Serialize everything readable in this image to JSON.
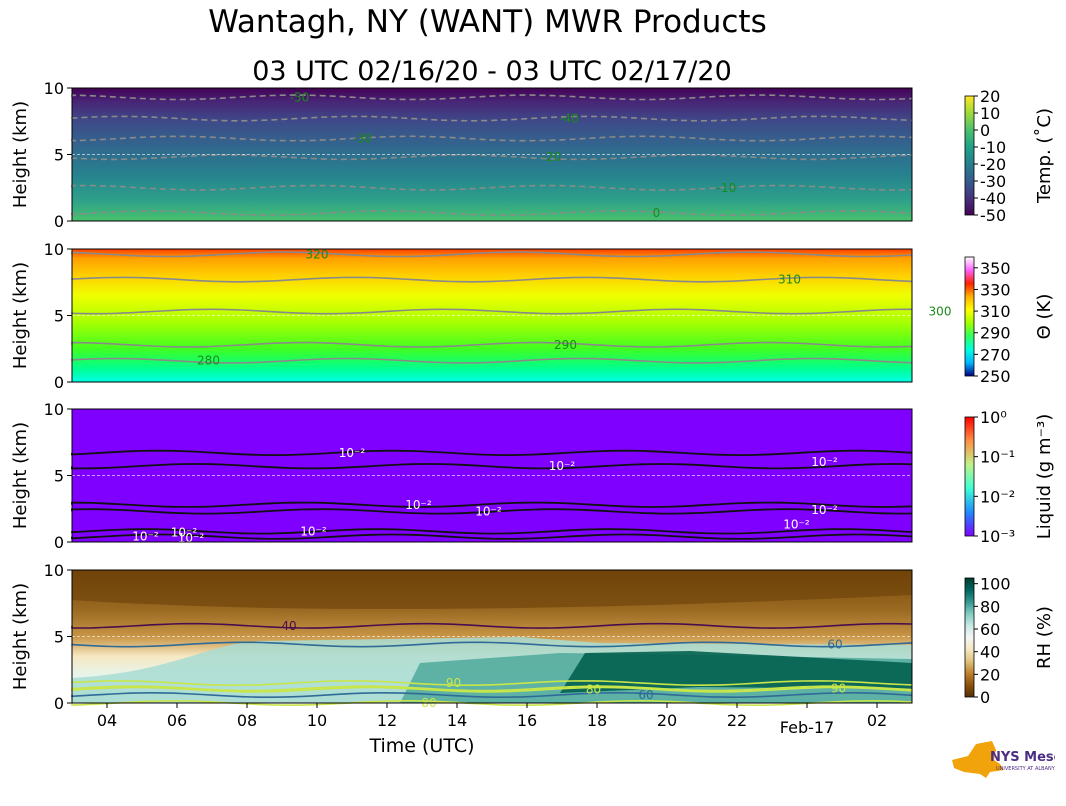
{
  "title": "Wantagh, NY (WANT) MWR Products",
  "subtitle": "03 UTC 02/16/20 - 03 UTC 02/17/20",
  "logo": {
    "name": "NYS Mesonet",
    "sub": "UNIVERSITY AT ALBANY",
    "colors": [
      "#f0a30a",
      "#4b2e83"
    ]
  },
  "chart_data": [
    {
      "type": "heatmap",
      "name": "temperature",
      "ylabel": "Height (km)",
      "ylim": [
        0,
        10
      ],
      "yticks": [
        "0",
        "5",
        "10"
      ],
      "colorbar_label": "Temp. (˚C)",
      "colorbar_ticks": [
        "-50",
        "-40",
        "-30",
        "-20",
        "-10",
        "0",
        "10",
        "20"
      ],
      "colorbar_range": [
        -50,
        20
      ],
      "colormap": [
        "#440154",
        "#46327e",
        "#365c8d",
        "#277f8e",
        "#1fa187",
        "#4ac16d",
        "#a0da39",
        "#fde725"
      ],
      "contour_levels": [
        "-50",
        "-40",
        "-30",
        "-20",
        "-10",
        "0"
      ],
      "contour_labels": [
        {
          "text": "-50",
          "t": 9.5,
          "h": 9.3
        },
        {
          "text": "-40",
          "t": 17.2,
          "h": 7.7
        },
        {
          "text": "-30",
          "t": 11.3,
          "h": 6.2
        },
        {
          "text": "-20",
          "t": 16.7,
          "h": 4.8
        },
        {
          "text": "-10",
          "t": 21.7,
          "h": 2.5
        },
        {
          "text": "0",
          "t": 19.7,
          "h": 0.6
        }
      ]
    },
    {
      "type": "heatmap",
      "name": "potential-temperature",
      "ylabel": "Height (km)",
      "ylim": [
        0,
        10
      ],
      "yticks": [
        "0",
        "5",
        "10"
      ],
      "colorbar_label": "Θ (K)",
      "colorbar_ticks": [
        "250",
        "270",
        "290",
        "310",
        "330",
        "350"
      ],
      "colorbar_range": [
        250,
        360
      ],
      "colormap": [
        "#000080",
        "#00b4ff",
        "#00ffe0",
        "#30ff60",
        "#a0ff00",
        "#ffff00",
        "#ffb000",
        "#ff2000",
        "#ff60ff",
        "#ffffff"
      ],
      "contour_levels": [
        "280",
        "290",
        "300",
        "310",
        "320"
      ],
      "contour_labels": [
        {
          "text": "320",
          "t": 10.0,
          "h": 9.6
        },
        {
          "text": "310",
          "t": 23.5,
          "h": 7.7
        },
        {
          "text": "300",
          "t": 27.8,
          "h": 5.3
        },
        {
          "text": "290",
          "t": 17.1,
          "h": 2.8
        },
        {
          "text": "280",
          "t": 6.9,
          "h": 1.6
        }
      ]
    },
    {
      "type": "heatmap",
      "name": "liquid-water",
      "ylabel": "Height (km)",
      "ylim": [
        0,
        10
      ],
      "yticks": [
        "0",
        "5",
        "10"
      ],
      "colorbar_label": "Liquid (g m⁻³)",
      "colorbar_scale": "log",
      "colorbar_ticks": [
        "10⁻³",
        "10⁻²",
        "10⁻¹",
        "10⁰"
      ],
      "colorbar_range": [
        0.001,
        1
      ],
      "colormap": [
        "#7f00ff",
        "#1f8bff",
        "#3effd5",
        "#bff28a",
        "#ff8f46",
        "#ff0000"
      ],
      "contour_levels": [
        "10⁻²"
      ],
      "contour_labels": [
        {
          "text": "10⁻²",
          "t": 11.0,
          "h": 6.7
        },
        {
          "text": "10⁻²",
          "t": 17.0,
          "h": 5.7
        },
        {
          "text": "10⁻²",
          "t": 24.5,
          "h": 6.0
        },
        {
          "text": "10⁻²",
          "t": 12.9,
          "h": 2.8
        },
        {
          "text": "10⁻²",
          "t": 14.9,
          "h": 2.3
        },
        {
          "text": "10⁻²",
          "t": 24.5,
          "h": 2.4
        },
        {
          "text": "10⁻²",
          "t": 9.9,
          "h": 0.8
        },
        {
          "text": "10⁻²",
          "t": 5.1,
          "h": 0.4
        },
        {
          "text": "10⁻²",
          "t": 6.2,
          "h": 0.7
        },
        {
          "text": "10⁻²",
          "t": 6.4,
          "h": 0.3
        },
        {
          "text": "10⁻²",
          "t": 23.7,
          "h": 1.3
        }
      ]
    },
    {
      "type": "heatmap",
      "name": "relative-humidity",
      "ylabel": "Height (km)",
      "xlabel": "Time (UTC)",
      "ylim": [
        0,
        10
      ],
      "yticks": [
        "0",
        "5",
        "10"
      ],
      "xlim": [
        3,
        27
      ],
      "xticks": [
        {
          "label": "04",
          "t": 4
        },
        {
          "label": "06",
          "t": 6
        },
        {
          "label": "08",
          "t": 8
        },
        {
          "label": "10",
          "t": 10
        },
        {
          "label": "12",
          "t": 12
        },
        {
          "label": "14",
          "t": 14
        },
        {
          "label": "16",
          "t": 16
        },
        {
          "label": "18",
          "t": 18
        },
        {
          "label": "20",
          "t": 20
        },
        {
          "label": "22",
          "t": 22
        },
        {
          "label": "02",
          "t": 26
        }
      ],
      "date_tick": {
        "label": "Feb-17",
        "t": 24
      },
      "colorbar_label": "RH (%)",
      "colorbar_ticks": [
        "0",
        "20",
        "40",
        "60",
        "80",
        "100"
      ],
      "colorbar_range": [
        0,
        105
      ],
      "colormap": [
        "#543005",
        "#8c510a",
        "#bf812d",
        "#dfc27d",
        "#f6e8c3",
        "#f5f5f5",
        "#c7eae5",
        "#80cdc1",
        "#35978f",
        "#01665e",
        "#003c30"
      ],
      "contour_levels": [
        "40",
        "60",
        "80",
        "90"
      ],
      "contour_labels": [
        {
          "text": "40",
          "t": 9.2,
          "h": 5.8
        },
        {
          "text": "60",
          "t": 24.8,
          "h": 4.4
        },
        {
          "text": "60",
          "t": 19.4,
          "h": 0.6
        },
        {
          "text": "90",
          "t": 13.9,
          "h": 1.5
        },
        {
          "text": "90",
          "t": 24.9,
          "h": 1.1
        },
        {
          "text": "80",
          "t": 13.2,
          "h": 0.0
        },
        {
          "text": "80",
          "t": 17.9,
          "h": 1.0
        }
      ]
    }
  ]
}
